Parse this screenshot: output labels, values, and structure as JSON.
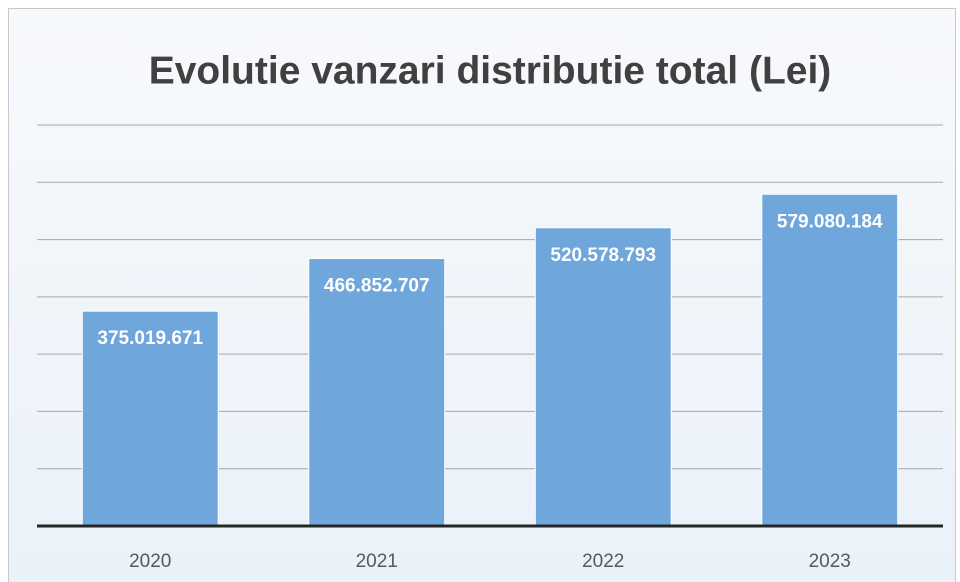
{
  "chart_data": {
    "type": "bar",
    "title": "Evolutie vanzari distributie total (Lei)",
    "categories": [
      "2020",
      "2021",
      "2022",
      "2023"
    ],
    "values": [
      375019671,
      466852707,
      520578793,
      579080184
    ],
    "value_labels": [
      "375.019.671",
      "466.852.707",
      "520.578.793",
      "579.080.184"
    ],
    "color": "#6fa6db",
    "ylim": [
      0,
      700000000
    ],
    "yticks": [
      0,
      100000000,
      200000000,
      300000000,
      400000000,
      500000000,
      600000000,
      700000000
    ],
    "grid": true
  }
}
